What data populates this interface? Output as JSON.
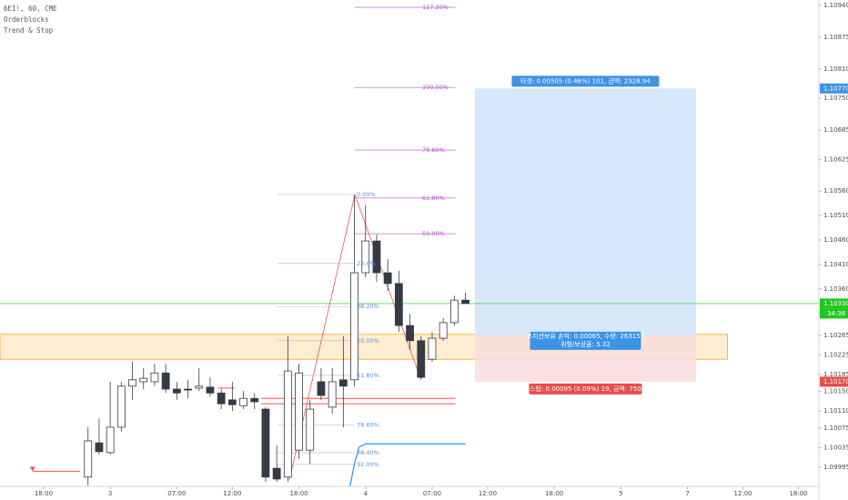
{
  "chart_data": {
    "type": "candlestick",
    "title": "6E1!, 60, CME",
    "indicators": [
      "Orderblocks",
      "Trend & Stop"
    ],
    "x": [
      4,
      5,
      6,
      7,
      8,
      9,
      10,
      11,
      12,
      13,
      14,
      15,
      16,
      17,
      18,
      19,
      20,
      21,
      22,
      23,
      24,
      25,
      26,
      27,
      28,
      29,
      30,
      31,
      32,
      33,
      34,
      35,
      36,
      37,
      38
    ],
    "open": [
      1.09975,
      1.10045,
      1.10025,
      1.10077,
      1.10161,
      1.1017,
      1.1017,
      1.10188,
      1.10155,
      1.10155,
      1.10157,
      1.10159,
      1.10147,
      1.10133,
      1.10121,
      1.10136,
      1.10114,
      1.09993,
      1.09975,
      1.1003,
      1.1003,
      1.1017,
      1.10118,
      1.10174,
      1.10174,
      1.10393,
      1.10458,
      1.10393,
      1.10371,
      1.10285,
      1.10254,
      1.10216,
      1.10259,
      1.10291,
      1.10337
    ],
    "high": [
      1.10077,
      1.10095,
      1.1017,
      1.1017,
      1.10211,
      1.10198,
      1.10207,
      1.10207,
      1.1017,
      1.10174,
      1.10198,
      1.10179,
      1.10155,
      1.1017,
      1.10151,
      1.10147,
      1.10118,
      1.1004,
      1.10263,
      1.10207,
      1.10133,
      1.10198,
      1.10198,
      1.10263,
      1.10551,
      1.10532,
      1.10471,
      1.10421,
      1.10397,
      1.10309,
      1.10263,
      1.10272,
      1.103,
      1.10346,
      1.10352
    ],
    "low": [
      1.09956,
      1.10021,
      1.10021,
      1.10068,
      1.10133,
      1.10155,
      1.10161,
      1.10147,
      1.10133,
      1.10136,
      1.10151,
      1.1014,
      1.10114,
      1.1011,
      1.10114,
      1.10114,
      1.09965,
      1.09965,
      1.09965,
      1.10012,
      1.10002,
      1.10133,
      1.10105,
      1.10077,
      1.10161,
      1.10384,
      1.10374,
      1.10356,
      1.10272,
      1.10235,
      1.10174,
      1.10211,
      1.10254,
      1.10285,
      1.1033
    ],
    "close": [
      1.10049,
      1.10027,
      1.10077,
      1.10161,
      1.10174,
      1.10177,
      1.10188,
      1.10155,
      1.10147,
      1.10153,
      1.10161,
      1.10147,
      1.10125,
      1.10123,
      1.10136,
      1.10129,
      1.09975,
      1.09971,
      1.10192,
      1.10188,
      1.10114,
      1.10142,
      1.1017,
      1.10161,
      1.10393,
      1.10458,
      1.10393,
      1.10371,
      1.10285,
      1.10254,
      1.10179,
      1.10259,
      1.10291,
      1.10337,
      1.1033
    ],
    "up_color": "#ffffff",
    "down_color": "#363a45",
    "xlim": [
      -3.93,
      69.84
    ],
    "xticks": [
      {
        "value": 0,
        "label": "18:00"
      },
      {
        "value": 6,
        "label": "3"
      },
      {
        "value": 12,
        "label": "07:00"
      },
      {
        "value": 17,
        "label": "12:00"
      },
      {
        "value": 23,
        "label": "18:00"
      },
      {
        "value": 29,
        "label": "4"
      },
      {
        "value": 35,
        "label": "07:00"
      },
      {
        "value": 40,
        "label": "12:00"
      },
      {
        "value": 46,
        "label": "18:00"
      },
      {
        "value": 52,
        "label": "5"
      },
      {
        "value": 58,
        "label": "7"
      },
      {
        "value": 63,
        "label": "12:00"
      },
      {
        "value": 68,
        "label": "18:00"
      }
    ],
    "ylim": [
      1.09956,
      1.10951
    ],
    "yticks": [
      {
        "value": 1.1094,
        "label": "1.10940"
      },
      {
        "value": 1.10875,
        "label": "1.10875"
      },
      {
        "value": 1.1081,
        "label": "1.10810"
      },
      {
        "value": 1.1075,
        "label": "1.10750"
      },
      {
        "value": 1.10685,
        "label": "1.10685"
      },
      {
        "value": 1.10625,
        "label": "1.10625"
      },
      {
        "value": 1.1056,
        "label": "1.10560"
      },
      {
        "value": 1.1051,
        "label": "1.10510"
      },
      {
        "value": 1.1046,
        "label": "1.10460"
      },
      {
        "value": 1.1041,
        "label": "1.10410"
      },
      {
        "value": 1.1036,
        "label": "1.10360"
      },
      {
        "value": 1.10265,
        "label": "1.10265"
      },
      {
        "value": 1.10225,
        "label": "1.10225"
      },
      {
        "value": 1.10185,
        "label": "1.10185"
      },
      {
        "value": 1.1015,
        "label": "1.10150"
      },
      {
        "value": 1.1011,
        "label": "1.10110"
      },
      {
        "value": 1.10075,
        "label": "1.10075"
      },
      {
        "value": 1.10035,
        "label": "1.10035"
      },
      {
        "value": 1.09995,
        "label": "1.09995"
      }
    ],
    "grid": false,
    "fib_upper": {
      "color": "#b04fc9",
      "x_range": [
        28.0,
        37.1
      ],
      "label_x": 34.1,
      "levels": [
        {
          "label": "127.20%",
          "value": 1.10936
        },
        {
          "label": "100.00%",
          "value": 1.10772
        },
        {
          "label": "78.60%",
          "value": 1.10644
        },
        {
          "label": "61.80%",
          "value": 1.10546
        },
        {
          "label": "50.00%",
          "value": 1.10473
        }
      ]
    },
    "fib_lower": {
      "color": "#5b8fd8",
      "x_range": [
        21.07,
        28.0
      ],
      "label_x": 28.2,
      "levels": [
        {
          "label": "0.00%",
          "value": 1.10553
        },
        {
          "label": "23.6%",
          "value": 1.10412
        },
        {
          "label": "38.20%",
          "value": 1.10324
        },
        {
          "label": "50.00%",
          "value": 1.10254
        },
        {
          "label": "61.80%",
          "value": 1.10183
        },
        {
          "label": "78.60%",
          "value": 1.10082
        },
        {
          "label": "88.40%",
          "value": 1.10025
        },
        {
          "label": "92.00%",
          "value": 1.10001
        }
      ]
    },
    "orderblock": {
      "top": 1.10267,
      "bottom": 1.10216,
      "x_range": [
        -3.93,
        61.6
      ],
      "color": "#ffe6bf",
      "border": "#f5a623"
    },
    "level_lines": {
      "color": "#ef5350",
      "lines": [
        {
          "value": 1.10136,
          "x_range": [
            19.6,
            37.1
          ]
        },
        {
          "value": 1.10125,
          "x_range": [
            19.6,
            37.1
          ]
        },
        {
          "value": 1.10157,
          "x_range": [
            15.7,
            17.2
          ]
        },
        {
          "value": 1.09987,
          "x_range": [
            -1.0,
            3.3
          ]
        }
      ]
    },
    "trend_stop": {
      "color": "#2196f3",
      "x": [
        27.6,
        28.0,
        28.4,
        29.0,
        38.0
      ],
      "values": [
        1.09956,
        1.10002,
        1.10036,
        1.10043,
        1.10043
      ]
    },
    "position": {
      "target": 1.1077,
      "entry": 1.10265,
      "stop": 1.1017,
      "x_range": [
        38.85,
        58.77
      ],
      "profit_color": "#d7e8fa",
      "loss_color": "#fadcdc",
      "target_text": "타겟: 0.00505 (0.46%) 101, 금액: 2328.94",
      "entry_text": [
        "포지션보유 손익: 0.00065, 수량: 263157",
        "위험/보상율: 5.32"
      ],
      "stop_text": "스탑: 0.00095 (0.09%) 19, 금액: 750"
    },
    "price_tags": [
      {
        "value": 1.1077,
        "label": "1.10770",
        "color": "#3d93e6"
      },
      {
        "value": 1.1033,
        "label": "1.10330",
        "color": "#1ec81e",
        "line": true
      },
      {
        "value": 1.1017,
        "label": "1.10170",
        "color": "#e84c4c"
      }
    ],
    "countdown": "34:36"
  }
}
